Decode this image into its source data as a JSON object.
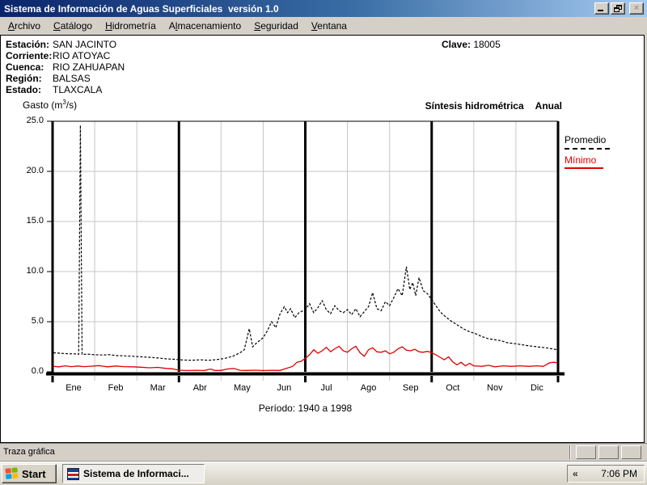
{
  "window": {
    "title": "Sistema de Información de Aguas Superficiales  versión 1.0"
  },
  "menu": {
    "items": [
      {
        "u": "A",
        "rest": "rchivo"
      },
      {
        "u": "C",
        "rest": "atálogo"
      },
      {
        "u": "H",
        "rest": "idrometría"
      },
      {
        "pre": "A",
        "u": "l",
        "rest": "macenamiento"
      },
      {
        "u": "S",
        "rest": "eguridad"
      },
      {
        "u": "V",
        "rest": "entana"
      }
    ]
  },
  "station": {
    "rows": [
      {
        "label": "Estación:",
        "value": "SAN JACINTO"
      },
      {
        "label": "Corriente:",
        "value": "RIO ATOYAC"
      },
      {
        "label": "Cuenca:",
        "value": "RIO ZAHUAPAN"
      },
      {
        "label": "Región:",
        "value": "BALSAS"
      },
      {
        "label": "Estado:",
        "value": "TLAXCALA"
      }
    ],
    "clave_label": "Clave:",
    "clave_value": "18005"
  },
  "chart_header": {
    "ylabel_pre": "Gasto (m",
    "ylabel_sup": "3",
    "ylabel_post": "/s)",
    "title": "Síntesis hidrométrica",
    "subtitle": "Anual"
  },
  "legend": {
    "items": [
      {
        "label": "Promedio",
        "color": "#000000"
      },
      {
        "label": "Mínimo",
        "color": "#e00000"
      }
    ]
  },
  "chart_data": {
    "type": "line",
    "title": "Síntesis hidrométrica Anual",
    "ylabel": "Gasto (m3/s)",
    "period": "Período:  1940 a 1998",
    "months": [
      "Ene",
      "Feb",
      "Mar",
      "Abr",
      "May",
      "Jun",
      "Jul",
      "Ago",
      "Sep",
      "Oct",
      "Nov",
      "Dic"
    ],
    "x_unit": "months 0-12 (daily mean annual synthesis)",
    "ylim": [
      0,
      25
    ],
    "yticks": [
      0,
      5,
      10,
      15,
      20,
      25
    ],
    "grid": true,
    "quarter_lines_after_months": [
      3,
      6,
      9
    ],
    "legend_position": "right-outside",
    "series": [
      {
        "name": "Promedio",
        "color": "#000000",
        "style": "dashed",
        "points": [
          [
            0.02,
            1.9
          ],
          [
            0.2,
            1.85
          ],
          [
            0.4,
            1.8
          ],
          [
            0.55,
            1.78
          ],
          [
            0.62,
            1.76
          ],
          [
            0.66,
            24.6
          ],
          [
            0.7,
            1.74
          ],
          [
            0.85,
            1.76
          ],
          [
            1.0,
            1.7
          ],
          [
            1.2,
            1.68
          ],
          [
            1.35,
            1.72
          ],
          [
            1.5,
            1.62
          ],
          [
            1.7,
            1.6
          ],
          [
            1.9,
            1.56
          ],
          [
            2.1,
            1.5
          ],
          [
            2.3,
            1.45
          ],
          [
            2.5,
            1.38
          ],
          [
            2.7,
            1.3
          ],
          [
            2.9,
            1.25
          ],
          [
            3.1,
            1.18
          ],
          [
            3.3,
            1.15
          ],
          [
            3.5,
            1.2
          ],
          [
            3.7,
            1.15
          ],
          [
            3.9,
            1.22
          ],
          [
            4.1,
            1.35
          ],
          [
            4.3,
            1.6
          ],
          [
            4.45,
            1.9
          ],
          [
            4.55,
            2.2
          ],
          [
            4.67,
            4.3
          ],
          [
            4.75,
            2.5
          ],
          [
            4.85,
            2.9
          ],
          [
            5.0,
            3.4
          ],
          [
            5.1,
            4.1
          ],
          [
            5.2,
            5.0
          ],
          [
            5.3,
            4.4
          ],
          [
            5.4,
            5.8
          ],
          [
            5.5,
            6.5
          ],
          [
            5.58,
            5.9
          ],
          [
            5.65,
            6.3
          ],
          [
            5.75,
            5.4
          ],
          [
            5.85,
            5.9
          ],
          [
            6.0,
            6.2
          ],
          [
            6.1,
            6.8
          ],
          [
            6.2,
            5.9
          ],
          [
            6.3,
            6.4
          ],
          [
            6.4,
            7.1
          ],
          [
            6.5,
            6.2
          ],
          [
            6.6,
            5.8
          ],
          [
            6.7,
            6.6
          ],
          [
            6.8,
            6.1
          ],
          [
            6.9,
            5.9
          ],
          [
            7.0,
            6.2
          ],
          [
            7.1,
            5.7
          ],
          [
            7.2,
            6.3
          ],
          [
            7.3,
            5.5
          ],
          [
            7.4,
            6.0
          ],
          [
            7.5,
            6.5
          ],
          [
            7.6,
            7.9
          ],
          [
            7.7,
            6.3
          ],
          [
            7.8,
            6.1
          ],
          [
            7.9,
            7.0
          ],
          [
            8.0,
            6.6
          ],
          [
            8.1,
            7.4
          ],
          [
            8.2,
            8.3
          ],
          [
            8.3,
            7.6
          ],
          [
            8.4,
            10.5
          ],
          [
            8.48,
            8.2
          ],
          [
            8.55,
            8.9
          ],
          [
            8.62,
            7.6
          ],
          [
            8.7,
            9.4
          ],
          [
            8.8,
            8.1
          ],
          [
            8.9,
            7.8
          ],
          [
            9.0,
            7.2
          ],
          [
            9.1,
            6.6
          ],
          [
            9.2,
            6.0
          ],
          [
            9.3,
            5.6
          ],
          [
            9.45,
            5.1
          ],
          [
            9.6,
            4.7
          ],
          [
            9.75,
            4.3
          ],
          [
            9.9,
            4.0
          ],
          [
            10.05,
            3.8
          ],
          [
            10.2,
            3.5
          ],
          [
            10.35,
            3.3
          ],
          [
            10.5,
            3.2
          ],
          [
            10.65,
            3.1
          ],
          [
            10.8,
            2.9
          ],
          [
            11.0,
            2.8
          ],
          [
            11.15,
            2.7
          ],
          [
            11.3,
            2.6
          ],
          [
            11.5,
            2.5
          ],
          [
            11.7,
            2.4
          ],
          [
            11.85,
            2.3
          ],
          [
            11.98,
            2.2
          ]
        ]
      },
      {
        "name": "Mínimo",
        "color": "#e00000",
        "style": "solid",
        "points": [
          [
            0.02,
            0.55
          ],
          [
            0.15,
            0.5
          ],
          [
            0.3,
            0.6
          ],
          [
            0.45,
            0.52
          ],
          [
            0.6,
            0.58
          ],
          [
            0.75,
            0.52
          ],
          [
            0.9,
            0.56
          ],
          [
            1.1,
            0.62
          ],
          [
            1.3,
            0.5
          ],
          [
            1.5,
            0.58
          ],
          [
            1.7,
            0.52
          ],
          [
            1.9,
            0.5
          ],
          [
            2.1,
            0.46
          ],
          [
            2.3,
            0.4
          ],
          [
            2.5,
            0.44
          ],
          [
            2.7,
            0.34
          ],
          [
            2.85,
            0.3
          ],
          [
            3.0,
            0.16
          ],
          [
            3.2,
            0.13
          ],
          [
            3.4,
            0.15
          ],
          [
            3.6,
            0.13
          ],
          [
            3.75,
            0.28
          ],
          [
            3.85,
            0.14
          ],
          [
            4.0,
            0.14
          ],
          [
            4.15,
            0.28
          ],
          [
            4.3,
            0.34
          ],
          [
            4.45,
            0.15
          ],
          [
            4.6,
            0.14
          ],
          [
            4.8,
            0.16
          ],
          [
            5.0,
            0.13
          ],
          [
            5.2,
            0.15
          ],
          [
            5.4,
            0.14
          ],
          [
            5.55,
            0.35
          ],
          [
            5.7,
            0.55
          ],
          [
            5.8,
            0.95
          ],
          [
            5.9,
            1.05
          ],
          [
            6.0,
            1.35
          ],
          [
            6.1,
            1.7
          ],
          [
            6.2,
            2.2
          ],
          [
            6.3,
            1.85
          ],
          [
            6.4,
            2.1
          ],
          [
            6.5,
            2.45
          ],
          [
            6.6,
            2.0
          ],
          [
            6.7,
            2.3
          ],
          [
            6.8,
            2.55
          ],
          [
            6.9,
            2.1
          ],
          [
            7.0,
            1.95
          ],
          [
            7.1,
            2.3
          ],
          [
            7.2,
            2.55
          ],
          [
            7.3,
            1.9
          ],
          [
            7.4,
            1.55
          ],
          [
            7.5,
            2.2
          ],
          [
            7.6,
            2.4
          ],
          [
            7.7,
            2.0
          ],
          [
            7.8,
            1.95
          ],
          [
            7.9,
            2.1
          ],
          [
            8.0,
            1.8
          ],
          [
            8.1,
            1.95
          ],
          [
            8.2,
            2.3
          ],
          [
            8.3,
            2.5
          ],
          [
            8.4,
            2.15
          ],
          [
            8.5,
            2.1
          ],
          [
            8.6,
            2.25
          ],
          [
            8.7,
            2.0
          ],
          [
            8.8,
            1.95
          ],
          [
            8.9,
            2.05
          ],
          [
            9.0,
            1.9
          ],
          [
            9.1,
            1.7
          ],
          [
            9.2,
            1.45
          ],
          [
            9.3,
            1.2
          ],
          [
            9.4,
            1.5
          ],
          [
            9.5,
            1.0
          ],
          [
            9.6,
            0.7
          ],
          [
            9.7,
            0.95
          ],
          [
            9.8,
            0.6
          ],
          [
            9.9,
            0.85
          ],
          [
            10.0,
            0.6
          ],
          [
            10.2,
            0.55
          ],
          [
            10.35,
            0.65
          ],
          [
            10.5,
            0.5
          ],
          [
            10.7,
            0.6
          ],
          [
            10.9,
            0.55
          ],
          [
            11.1,
            0.6
          ],
          [
            11.3,
            0.55
          ],
          [
            11.5,
            0.6
          ],
          [
            11.65,
            0.55
          ],
          [
            11.8,
            0.9
          ],
          [
            11.9,
            0.95
          ],
          [
            11.98,
            0.9
          ]
        ]
      }
    ]
  },
  "status_bar": {
    "text": "Traza gráfica"
  },
  "taskbar": {
    "start_label": "Start",
    "task_label": "Sistema de Informaci...",
    "tray_chevron": "«",
    "clock": "7:06 PM"
  }
}
